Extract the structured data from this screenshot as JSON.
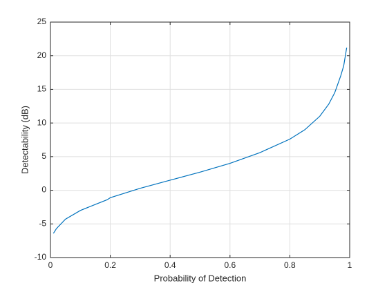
{
  "chart_data": {
    "type": "line",
    "xlabel": "Probability of Detection",
    "ylabel": "Detectability (dB)",
    "x": [
      0.01,
      0.02,
      0.05,
      0.1,
      0.15,
      0.19,
      0.2,
      0.3,
      0.4,
      0.5,
      0.6,
      0.7,
      0.8,
      0.85,
      0.9,
      0.93,
      0.95,
      0.97,
      0.98,
      0.99
    ],
    "values": [
      -6.4,
      -5.7,
      -4.3,
      -3.0,
      -2.1,
      -1.4,
      -1.1,
      0.3,
      1.5,
      2.7,
      4.0,
      5.6,
      7.6,
      9.0,
      11.0,
      12.8,
      14.5,
      17.0,
      18.5,
      21.2
    ],
    "color": "#0072bd",
    "xlim": [
      0,
      1
    ],
    "xticks": [
      0,
      0.2,
      0.4,
      0.6,
      0.8,
      1
    ],
    "ylim": [
      -10,
      25
    ],
    "yticks": [
      -10,
      -5,
      0,
      5,
      10,
      15,
      20,
      25
    ],
    "grid": true
  }
}
